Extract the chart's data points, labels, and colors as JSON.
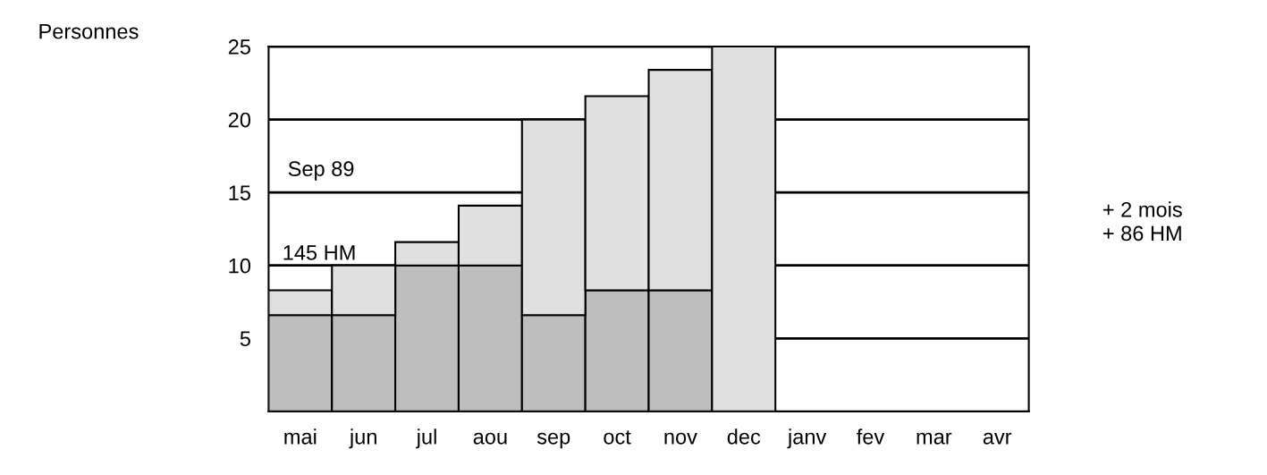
{
  "chart_data": {
    "type": "bar",
    "stacked": true,
    "ylabel": "Personnes",
    "categories": [
      "mai",
      "jun",
      "jul",
      "aou",
      "sep",
      "oct",
      "nov",
      "dec",
      "janv",
      "fev",
      "mar",
      "avr"
    ],
    "series": [
      {
        "color": "#bebebe",
        "values": [
          6.6,
          6.6,
          10.0,
          10.0,
          6.6,
          8.3,
          8.3,
          0,
          null,
          null,
          null,
          null
        ]
      },
      {
        "color": "#e0e0e0",
        "values": [
          1.7,
          3.4,
          1.6,
          4.1,
          13.4,
          13.3,
          15.1,
          25,
          null,
          null,
          null,
          null
        ]
      }
    ],
    "ylim": [
      0,
      25
    ],
    "yticks": [
      5,
      10,
      15,
      20,
      25
    ],
    "grid": "y",
    "annotations": [
      "Sep 89",
      "145 HM",
      "+ 2 mois",
      "+ 86 HM"
    ]
  }
}
